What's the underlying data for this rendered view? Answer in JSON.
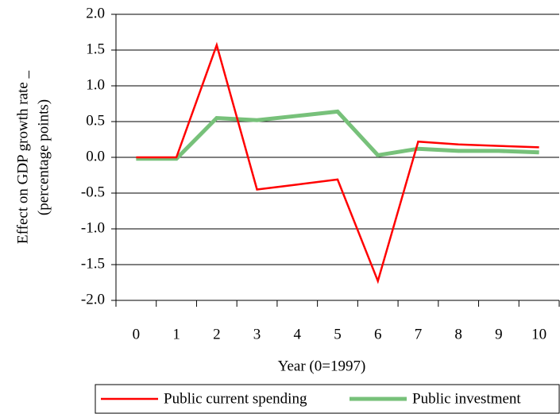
{
  "chart_data": {
    "type": "line",
    "xlabel": "Year (0=1997)",
    "ylabel": [
      "Effect on GDP growth rate _",
      "(percentage points)"
    ],
    "categories": [
      "0",
      "1",
      "2",
      "3",
      "4",
      "5",
      "6",
      "7",
      "8",
      "9",
      "10"
    ],
    "series": [
      {
        "name": "Public current spending",
        "color": "#ff0000",
        "values": [
          0,
          0,
          1.57,
          -0.45,
          -0.38,
          -0.31,
          -1.73,
          0.22,
          0.18,
          0.16,
          0.14
        ]
      },
      {
        "name": "Public investment",
        "color": "#77c17a",
        "values": [
          -0.02,
          -0.02,
          0.55,
          0.52,
          0.58,
          0.64,
          0.03,
          0.12,
          0.09,
          0.09,
          0.07
        ]
      }
    ],
    "ylim": [
      -2,
      2
    ],
    "yticks": [
      {
        "value": -2,
        "label": "-2.0"
      },
      {
        "value": -1.5,
        "label": "-1.5"
      },
      {
        "value": -1,
        "label": "-1.0"
      },
      {
        "value": -0.5,
        "label": "-0.5"
      },
      {
        "value": 0,
        "label": "0.0"
      },
      {
        "value": 0.5,
        "label": "0.5"
      },
      {
        "value": 1,
        "label": "1.0"
      },
      {
        "value": 1.5,
        "label": "1.5"
      },
      {
        "value": 2,
        "label": "2.0"
      }
    ],
    "grid": true,
    "legend": "bottom"
  }
}
